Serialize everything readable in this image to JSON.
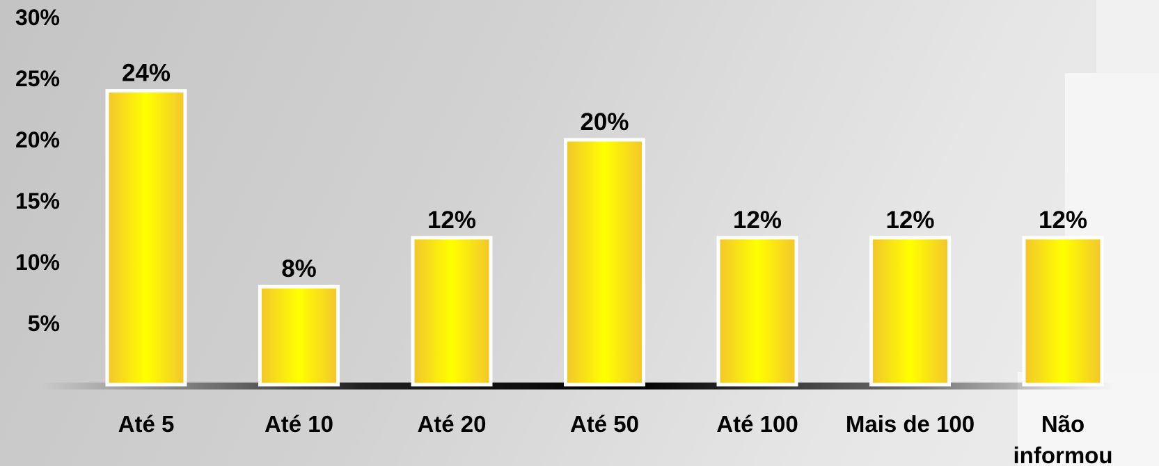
{
  "chart_data": {
    "type": "bar",
    "title": "",
    "xlabel": "",
    "ylabel": "",
    "categories": [
      "Até 5",
      "Até 10",
      "Até 20",
      "Até 50",
      "Até 100",
      "Mais de 100",
      "Não informou"
    ],
    "values": [
      24,
      8,
      12,
      20,
      12,
      12,
      12
    ],
    "data_labels": [
      "24%",
      "8%",
      "12%",
      "20%",
      "12%",
      "12%",
      "12%"
    ],
    "ylim": [
      0,
      30
    ],
    "yticks": [
      5,
      10,
      15,
      20,
      25,
      30
    ],
    "ytick_labels": [
      "5%",
      "10%",
      "15%",
      "20%",
      "25%",
      "30%"
    ],
    "grid": false,
    "legend": "none",
    "colors": {
      "bar_center": "#ffff00",
      "bar_edge": "#f2c52d",
      "bar_outline": "#ffffff",
      "baseline": "#000000",
      "text": "#000000"
    }
  }
}
